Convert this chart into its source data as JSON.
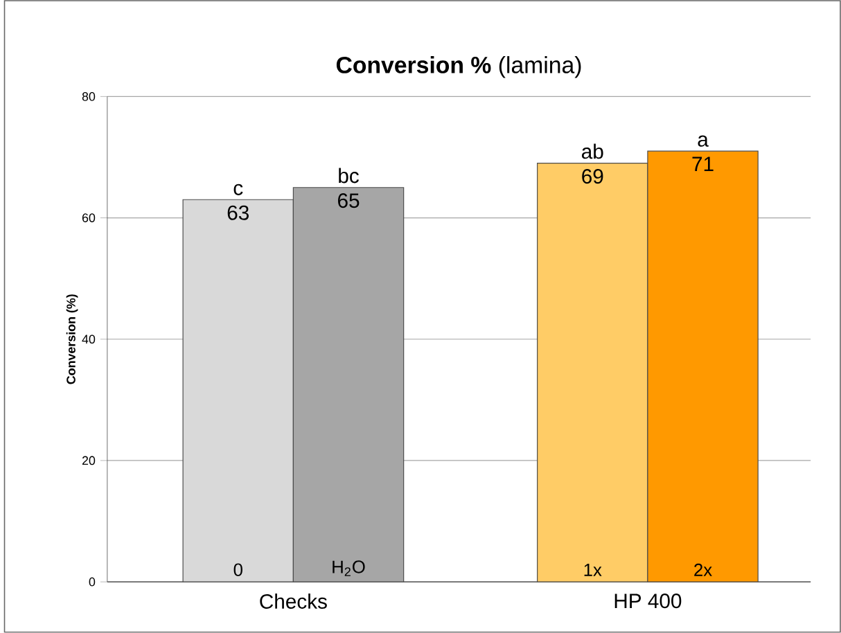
{
  "chart_data": {
    "type": "bar",
    "title": "**Conversion %** (lamina)",
    "ylabel": "Conversion (%)",
    "categories": [
      "Checks",
      "HP 400"
    ],
    "series": [
      {
        "name": "0",
        "color": "#d9d9d9",
        "values": [
          63,
          null
        ]
      },
      {
        "name": "H$_{2}$O",
        "color": "#a6a6a6",
        "values": [
          65,
          null
        ]
      },
      {
        "name": "1x",
        "color": "#ffcc66",
        "values": [
          null,
          69
        ]
      },
      {
        "name": "2x",
        "color": "#ff9900",
        "values": [
          null,
          71
        ]
      }
    ],
    "ylim": [
      0,
      80
    ],
    "yticks": [
      0,
      20,
      40,
      60,
      80
    ],
    "grid": "y",
    "data_labels": true,
    "annotations": [
      {
        "text": "c",
        "x": "Checks",
        "y": 63
      },
      {
        "text": "bc",
        "x": "Checks",
        "y": 65
      },
      {
        "text": "ab",
        "x": "HP 400",
        "y": 69
      },
      {
        "text": "a",
        "x": "HP 400",
        "y": 71
      }
    ]
  }
}
